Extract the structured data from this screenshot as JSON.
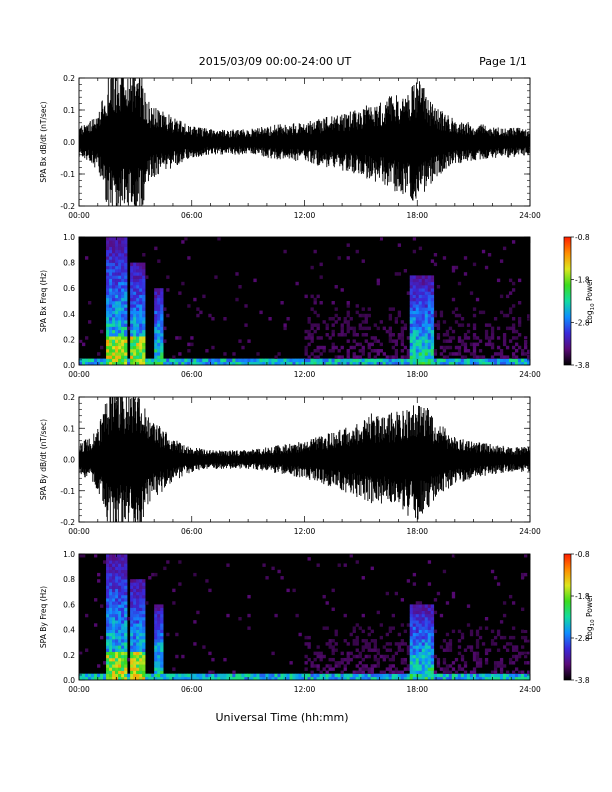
{
  "header": {
    "title": "2015/03/09  00:00-24:00 UT",
    "page_label": "Page 1/1"
  },
  "footer": {
    "xlabel": "Universal Time (hh:mm)"
  },
  "colorbar": {
    "ticks": [
      "-0.8",
      "-1.8",
      "-2.8",
      "-3.8"
    ],
    "tick_values": [
      -0.8,
      -1.8,
      -2.8,
      -3.8
    ],
    "label_main": "Log",
    "label_sub": "10",
    "label_tail": " Power",
    "range": [
      -3.8,
      -0.8
    ],
    "colors": [
      "#000000",
      "#5a0a78",
      "#3a2adc",
      "#0f8fff",
      "#12dca0",
      "#3cdc1e",
      "#dce61e",
      "#ff8c00",
      "#ff1e00"
    ]
  },
  "chart_data": [
    {
      "type": "line",
      "name": "bx-waveform",
      "ylabel": "SPA Bx dB/dt (nT/sec)",
      "xlim": [
        0,
        24
      ],
      "ylim": [
        -0.2,
        0.2
      ],
      "x_ticks": [
        "00:00",
        "06:00",
        "12:00",
        "18:00",
        "24:00"
      ],
      "x_tick_values": [
        0,
        6,
        12,
        18,
        24
      ],
      "y_ticks": [
        "0.2",
        "0.1",
        "0.0",
        "-0.1",
        "-0.2"
      ],
      "y_tick_values": [
        0.2,
        0.1,
        0.0,
        -0.1,
        -0.2
      ],
      "envelope_hours": [
        0,
        0.5,
        1.0,
        1.5,
        1.8,
        2.0,
        2.5,
        3.0,
        3.3,
        3.8,
        4.3,
        5.0,
        6.0,
        7.0,
        8.0,
        9.0,
        10.0,
        11.0,
        12.0,
        13.0,
        14.0,
        15.0,
        15.5,
        16.0,
        17.0,
        17.5,
        18.0,
        18.5,
        19.0,
        20.0,
        21.0,
        22.0,
        23.0,
        24.0
      ],
      "envelope_amplitude": [
        0.05,
        0.06,
        0.09,
        0.2,
        0.25,
        0.25,
        0.2,
        0.25,
        0.22,
        0.12,
        0.1,
        0.08,
        0.05,
        0.04,
        0.04,
        0.04,
        0.05,
        0.06,
        0.06,
        0.08,
        0.09,
        0.11,
        0.12,
        0.13,
        0.16,
        0.17,
        0.2,
        0.16,
        0.11,
        0.07,
        0.06,
        0.05,
        0.05,
        0.04
      ]
    },
    {
      "type": "heatmap",
      "name": "bx-spectrogram",
      "ylabel": "SPA Bx Freq (Hz)",
      "xlim": [
        0,
        24
      ],
      "ylim": [
        0.0,
        1.0
      ],
      "x_ticks": [
        "00:00",
        "06:00",
        "12:00",
        "18:00",
        "24:00"
      ],
      "x_tick_values": [
        0,
        6,
        12,
        18,
        24
      ],
      "y_ticks": [
        "1.0",
        "0.8",
        "0.6",
        "0.4",
        "0.2",
        "0.0"
      ],
      "y_tick_values": [
        1.0,
        0.8,
        0.6,
        0.4,
        0.2,
        0.0
      ],
      "zlim": [
        -3.8,
        -0.8
      ],
      "bright_band_hours": [
        [
          1.5,
          2.6
        ],
        [
          2.8,
          3.5
        ],
        [
          4.0,
          4.4
        ],
        [
          17.6,
          18.8
        ]
      ],
      "band_freq_ceiling_hz": [
        1.0,
        0.8,
        0.6,
        0.7
      ],
      "low_freq_floor_hz": 0.05
    },
    {
      "type": "line",
      "name": "by-waveform",
      "ylabel": "SPA By dB/dt (nT/sec)",
      "xlim": [
        0,
        24
      ],
      "ylim": [
        -0.2,
        0.2
      ],
      "x_ticks": [
        "00:00",
        "06:00",
        "12:00",
        "18:00",
        "24:00"
      ],
      "x_tick_values": [
        0,
        6,
        12,
        18,
        24
      ],
      "y_ticks": [
        "0.2",
        "0.1",
        "0.0",
        "-0.1",
        "-0.2"
      ],
      "y_tick_values": [
        0.2,
        0.1,
        0.0,
        -0.1,
        -0.2
      ],
      "envelope_hours": [
        0,
        0.5,
        1.0,
        1.5,
        1.8,
        2.0,
        2.5,
        3.0,
        3.3,
        3.8,
        4.3,
        5.0,
        6.0,
        7.0,
        8.0,
        9.0,
        10.0,
        11.0,
        12.0,
        13.0,
        14.0,
        15.0,
        15.5,
        16.0,
        17.0,
        17.5,
        18.0,
        18.5,
        19.0,
        20.0,
        21.0,
        22.0,
        23.0,
        24.0
      ],
      "envelope_amplitude": [
        0.05,
        0.07,
        0.1,
        0.2,
        0.25,
        0.25,
        0.2,
        0.25,
        0.22,
        0.14,
        0.11,
        0.07,
        0.04,
        0.03,
        0.03,
        0.03,
        0.04,
        0.05,
        0.06,
        0.08,
        0.1,
        0.13,
        0.15,
        0.14,
        0.16,
        0.18,
        0.2,
        0.17,
        0.12,
        0.08,
        0.06,
        0.05,
        0.04,
        0.04
      ]
    },
    {
      "type": "heatmap",
      "name": "by-spectrogram",
      "ylabel": "SPA By Freq (Hz)",
      "xlim": [
        0,
        24
      ],
      "ylim": [
        0.0,
        1.0
      ],
      "x_ticks": [
        "00:00",
        "06:00",
        "12:00",
        "18:00",
        "24:00"
      ],
      "x_tick_values": [
        0,
        6,
        12,
        18,
        24
      ],
      "y_ticks": [
        "1.0",
        "0.8",
        "0.6",
        "0.4",
        "0.2",
        "0.0"
      ],
      "y_tick_values": [
        1.0,
        0.8,
        0.6,
        0.4,
        0.2,
        0.0
      ],
      "zlim": [
        -3.8,
        -0.8
      ],
      "bright_band_hours": [
        [
          1.5,
          2.6
        ],
        [
          2.8,
          3.5
        ],
        [
          4.0,
          4.4
        ],
        [
          17.6,
          18.8
        ]
      ],
      "band_freq_ceiling_hz": [
        1.0,
        0.8,
        0.6,
        0.6
      ],
      "low_freq_floor_hz": 0.05
    }
  ]
}
